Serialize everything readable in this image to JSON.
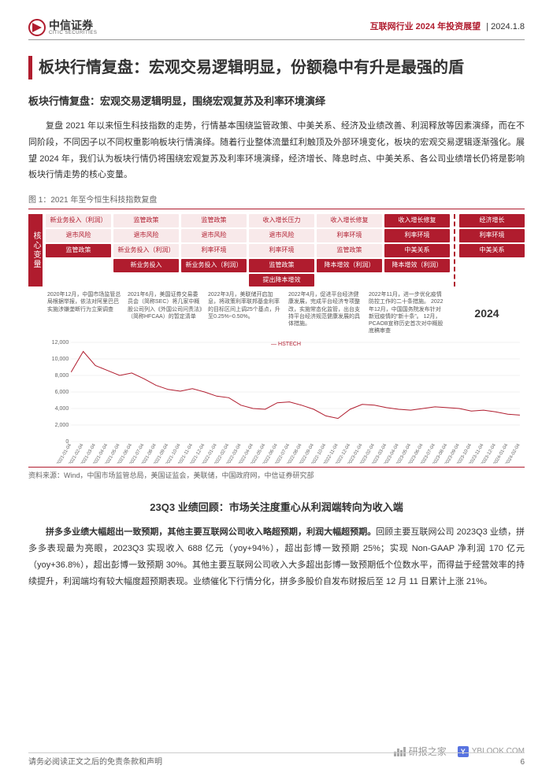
{
  "header": {
    "logo_cn": "中信证券",
    "logo_en": "CITIC SECURITIES",
    "category": "互联网行业 2024 年投资展望",
    "date": "2024.1.8"
  },
  "h1": "板块行情复盘：宏观交易逻辑明显，份额稳中有升是最强的盾",
  "h2a": "板块行情复盘：宏观交易逻辑明显，围绕宏观复苏及利率环境演绎",
  "para1": "复盘 2021 年以来恒生科技指数的走势，行情基本围绕监管政策、中美关系、经济及业绩改善、利润释放等因素演绎，而在不同阶段，不同因子以不同权重影响板块行情演绎。随着行业整体流量红利触顶及外部环境变化，板块的宏观交易逻辑逐渐强化。展望 2024 年，我们认为板块行情仍将围绕宏观复苏及利率环境演绎，经济增长、降息时点、中美关系、各公司业绩增长仍将是影响板块行情走势的核心变量。",
  "fig1": {
    "title": "图 1：2021 年至今恒生科技指数复盘",
    "tags_label": "核心变量",
    "columns": [
      {
        "tags": [
          {
            "t": "新业务投入（利润）",
            "s": "light"
          },
          {
            "t": "退市风险",
            "s": "light"
          },
          {
            "t": "监管政策",
            "s": "solid"
          }
        ]
      },
      {
        "tags": [
          {
            "t": "监管政策",
            "s": "light"
          },
          {
            "t": "退市风险",
            "s": "light"
          },
          {
            "t": "新业务投入（利润）",
            "s": "light"
          },
          {
            "t": "新业务投入",
            "s": "solid"
          }
        ]
      },
      {
        "tags": [
          {
            "t": "监管政策",
            "s": "light"
          },
          {
            "t": "退市风险",
            "s": "light"
          },
          {
            "t": "利率环境",
            "s": "light"
          },
          {
            "t": "新业务投入（利润）",
            "s": "solid"
          }
        ]
      },
      {
        "tags": [
          {
            "t": "收入增长压力",
            "s": "light"
          },
          {
            "t": "退市风险",
            "s": "light"
          },
          {
            "t": "利率环境",
            "s": "light"
          },
          {
            "t": "监管政策",
            "s": "solid"
          },
          {
            "t": "提出降本增效",
            "s": "solid"
          }
        ]
      },
      {
        "tags": [
          {
            "t": "收入增长修复",
            "s": "light"
          },
          {
            "t": "利率环境",
            "s": "light"
          },
          {
            "t": "监管政策",
            "s": "light"
          },
          {
            "t": "降本增效（利润）",
            "s": "solid"
          }
        ]
      },
      {
        "tags": [
          {
            "t": "收入增长修复",
            "s": "solid"
          },
          {
            "t": "利率环境",
            "s": "solid"
          },
          {
            "t": "中美关系",
            "s": "solid"
          },
          {
            "t": "降本增效（利润）",
            "s": "solid"
          }
        ]
      },
      {
        "tags": [
          {
            "t": "经济增长",
            "s": "solid"
          },
          {
            "t": "利率环境",
            "s": "solid"
          },
          {
            "t": "中美关系",
            "s": "solid"
          }
        ]
      }
    ],
    "annotations": [
      "2020年12月，中国市场监管总局根据举报，依法对阿里巴巴实施涉嫌垄断行为立案调查",
      "2021年6月，美国证券交易委员会（简称SEC）将几家中概股公司列入《外国公司问责法》（简称HFCAA）的暂定清单",
      "2022年3月，美联储开启加息，将政策利率联邦基金利率的目标区间上调25个基点，升至0.25%~0.50%。",
      "2022年4月，促进平台经济健康发展，完成平台经济专项整改，实施常态化监管，出台支持平台经济规范健康发展的具体措施。",
      "2022年11月，进一步优化疫情防控工作的二十条措施。\n2022年12月，中国国务院发布针对新冠疫情的“新十条”。\n12月，PCAOB宣称历史首次对中概股底稿审查"
    ],
    "year_label": "2024",
    "legend": "HSTECH",
    "source": "资料来源：Wind，中国市场监管总局，美国证监会，美联储，中国政府网，中信证券研究部",
    "chart": {
      "type": "line",
      "ylim": [
        0,
        12000
      ],
      "yticks": [
        0,
        2000,
        4000,
        6000,
        8000,
        10000,
        12000
      ],
      "xlabels": [
        "2021-01-04",
        "2021-02-04",
        "2021-03-04",
        "2021-04-04",
        "2021-05-04",
        "2021-06-04",
        "2021-07-04",
        "2021-08-04",
        "2021-09-04",
        "2021-10-04",
        "2021-11-04",
        "2021-12-04",
        "2022-01-04",
        "2022-02-04",
        "2022-03-04",
        "2022-04-04",
        "2022-05-04",
        "2022-06-04",
        "2022-07-04",
        "2022-08-04",
        "2022-09-04",
        "2022-10-04",
        "2022-11-04",
        "2022-12-04",
        "2023-01-04",
        "2023-02-04",
        "2023-03-04",
        "2023-04-04",
        "2023-05-04",
        "2023-06-04",
        "2023-07-04",
        "2023-08-04",
        "2023-09-04",
        "2023-10-04",
        "2023-11-04",
        "2023-12-04",
        "2024-01-04",
        "2024-02-04"
      ],
      "values": [
        8400,
        10900,
        9200,
        8600,
        8000,
        8300,
        7600,
        6800,
        6300,
        6100,
        6400,
        6000,
        5500,
        5300,
        4400,
        4000,
        3900,
        4700,
        4800,
        4400,
        3900,
        3100,
        2800,
        3900,
        4500,
        4400,
        4100,
        3900,
        3800,
        4000,
        4200,
        4100,
        4000,
        3700,
        3800,
        3600,
        3300,
        3200
      ],
      "line_color": "#b01c2e",
      "grid_color": "#e5e5e5",
      "background": "#ffffff"
    }
  },
  "h2b": "23Q3 业绩回顾：市场关注度重心从利润端转向为收入端",
  "para2_lead": "拼多多业绩大幅超出一致预期，其他主要互联网公司收入略超预期，利润大幅超预期。",
  "para2_rest": "回顾主要互联网公司 2023Q3 业绩，拼多多表现最为亮眼，2023Q3 实现收入 688 亿元（yoy+94%），超出彭博一致预期 25%；实现 Non-GAAP 净利润 170 亿元（yoy+36.8%），超出彭博一致预期 30%。其他主要互联网公司收入大多超出彭博一致预期低个位数水平，而得益于经营效率的持续提升，利润端均有较大幅度超预期表现。业绩催化下行情分化，拼多多股价自发布财报后至 12 月 11 日累计上涨 21%。",
  "footer": {
    "disclaimer": "请务必阅读正文之后的免责条款和声明",
    "page": "6",
    "wm_ybook": "YBLOOK.COM",
    "wm_yanbao": "研报之家"
  }
}
